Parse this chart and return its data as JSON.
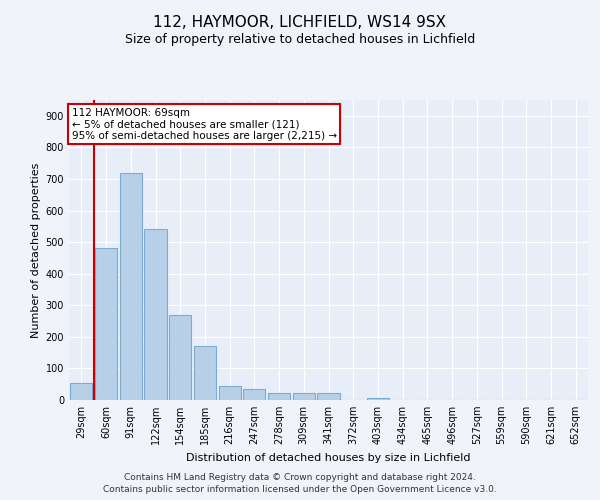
{
  "title1": "112, HAYMOOR, LICHFIELD, WS14 9SX",
  "title2": "Size of property relative to detached houses in Lichfield",
  "xlabel": "Distribution of detached houses by size in Lichfield",
  "ylabel": "Number of detached properties",
  "categories": [
    "29sqm",
    "60sqm",
    "91sqm",
    "122sqm",
    "154sqm",
    "185sqm",
    "216sqm",
    "247sqm",
    "278sqm",
    "309sqm",
    "341sqm",
    "372sqm",
    "403sqm",
    "434sqm",
    "465sqm",
    "496sqm",
    "527sqm",
    "559sqm",
    "590sqm",
    "621sqm",
    "652sqm"
  ],
  "values": [
    55,
    480,
    720,
    540,
    270,
    170,
    45,
    35,
    22,
    22,
    22,
    0,
    5,
    0,
    0,
    0,
    0,
    0,
    0,
    0,
    0
  ],
  "bar_color": "#b8cfe8",
  "bar_edge_color": "#7aadd4",
  "vline_color": "#cc0000",
  "annotation_line1": "112 HAYMOOR: 69sqm",
  "annotation_line2": "← 5% of detached houses are smaller (121)",
  "annotation_line3": "95% of semi-detached houses are larger (2,215) →",
  "annotation_box_facecolor": "#ffffff",
  "annotation_box_edgecolor": "#cc0000",
  "ylim": [
    0,
    950
  ],
  "yticks": [
    0,
    100,
    200,
    300,
    400,
    500,
    600,
    700,
    800,
    900
  ],
  "fig_bg_color": "#f0f4fa",
  "axes_bg_color": "#e8eef8",
  "grid_color": "#ffffff",
  "footer1": "Contains HM Land Registry data © Crown copyright and database right 2024.",
  "footer2": "Contains public sector information licensed under the Open Government Licence v3.0.",
  "title1_fontsize": 11,
  "title2_fontsize": 9,
  "xlabel_fontsize": 8,
  "ylabel_fontsize": 8,
  "tick_fontsize": 7,
  "footer_fontsize": 6.5
}
